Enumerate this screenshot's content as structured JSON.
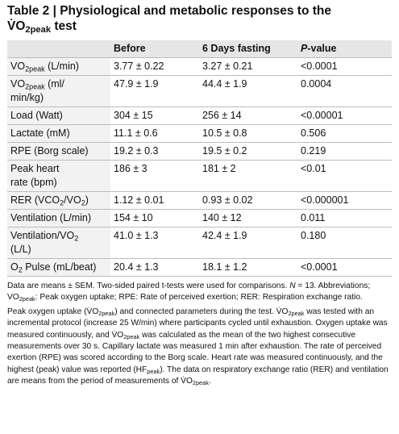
{
  "title": {
    "line1": [
      {
        "t": "Table 2 | Physiological and metabolic responses to the"
      }
    ],
    "line2": [
      {
        "t": "V̇O"
      },
      {
        "sub": "2peak"
      },
      {
        "t": " test"
      }
    ]
  },
  "table": {
    "header": {
      "before": "Before",
      "fasting": "6 Days fasting",
      "p": [
        {
          "it": "P"
        },
        {
          "t": "-value"
        }
      ]
    },
    "rows": [
      {
        "label": [
          {
            "t": "VO"
          },
          {
            "sub": "2peak"
          },
          {
            "t": " (L/min)"
          }
        ],
        "before": "3.77 ± 0.22",
        "fasting": "3.27 ± 0.21",
        "p": "<0.0001"
      },
      {
        "label": [
          {
            "t": "VO"
          },
          {
            "sub": "2peak"
          },
          {
            "t": " (ml/ min/kg)"
          }
        ],
        "before": "47.9 ± 1.9",
        "fasting": "44.4 ± 1.9",
        "p": "0.0004"
      },
      {
        "label": [
          {
            "t": "Load (Watt)"
          }
        ],
        "before": "304 ± 15",
        "fasting": "256 ± 14",
        "p": "<0.00001"
      },
      {
        "label": [
          {
            "t": "Lactate (mM)"
          }
        ],
        "before": "11.1 ± 0.6",
        "fasting": "10.5 ± 0.8",
        "p": "0.506"
      },
      {
        "label": [
          {
            "t": "RPE (Borg scale)"
          }
        ],
        "before": "19.2 ± 0.3",
        "fasting": "19.5 ± 0.2",
        "p": "0.219"
      },
      {
        "label": [
          {
            "t": "Peak heart rate (bpm)"
          }
        ],
        "before": "186 ± 3",
        "fasting": "181 ± 2",
        "p": "<0.01"
      },
      {
        "label": [
          {
            "t": "RER (VCO"
          },
          {
            "sub": "2"
          },
          {
            "t": "/VO"
          },
          {
            "sub": "2"
          },
          {
            "t": ")"
          }
        ],
        "before": "1.12 ± 0.01",
        "fasting": "0.93 ± 0.02",
        "p": "<0.000001"
      },
      {
        "label": [
          {
            "t": "Ventilation (L/min)"
          }
        ],
        "before": "154 ± 10",
        "fasting": "140 ± 12",
        "p": "0.011"
      },
      {
        "label": [
          {
            "t": "Ventilation/VO"
          },
          {
            "sub": "2"
          },
          {
            "t": " (L/L)"
          }
        ],
        "before": "41.0 ± 1.3",
        "fasting": "42.4 ± 1.9",
        "p": "0.180"
      },
      {
        "label": [
          {
            "t": "O"
          },
          {
            "sub": "2"
          },
          {
            "t": " Pulse (mL/beat)"
          }
        ],
        "before": "20.4 ± 1.3",
        "fasting": "18.1 ± 1.2",
        "p": "<0.0001"
      }
    ]
  },
  "footnotes": [
    [
      {
        "t": "Data are means ± SEM. Two-sided paired t-tests were used for comparisons. "
      },
      {
        "it": "N"
      },
      {
        "t": " = 13. Abbreviations; VO"
      },
      {
        "sub": "2peak"
      },
      {
        "t": ": Peak oxygen uptake; RPE: Rate of perceived exertion; RER: Respiration exchange ratio."
      }
    ],
    [
      {
        "t": "Peak oxygen uptake (V̇O"
      },
      {
        "sub": "2peak"
      },
      {
        "t": ") and connected parameters during the test. V̇O"
      },
      {
        "sub": "2peak"
      },
      {
        "t": " was tested with an incremental protocol (increase 25 W/min) where participants cycled until exhaustion. Oxygen uptake was measured continuously, and V̇O"
      },
      {
        "sub": "2peak"
      },
      {
        "t": " was calculated as the mean of the two highest consecutive measurements over 30 s. Capillary lactate was measured 1 min after exhaustion. The rate of perceived exertion (RPE) was scored according to the Borg scale. Heart rate was measured continuously, and the highest (peak) value was reported (HF"
      },
      {
        "sub": "peak"
      },
      {
        "t": "). The data on respiratory exchange ratio (RER) and ventilation are means from the period of measurements of V̇O"
      },
      {
        "sub": "2peak"
      },
      {
        "t": "."
      }
    ]
  ]
}
